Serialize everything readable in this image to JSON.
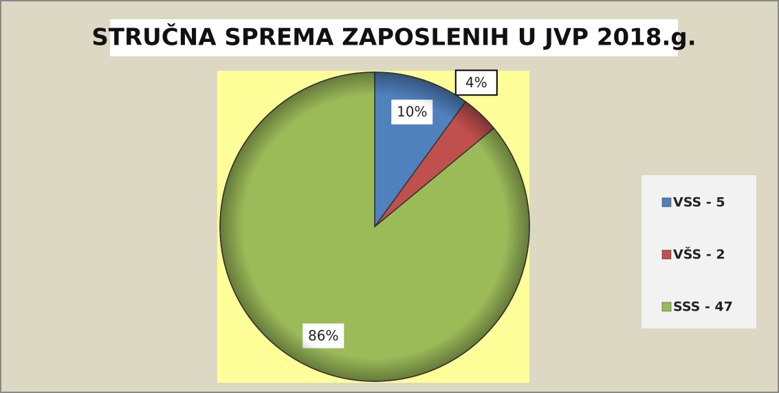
{
  "chart_data": {
    "type": "pie",
    "title": "STRUČNA SPREMA ZAPOSLENIH U JVP 2018.g.",
    "categories": [
      "VSS - 5",
      "VŠS - 2",
      "SSS - 47"
    ],
    "values": [
      10,
      4,
      86
    ],
    "value_labels": [
      "10%",
      "4%",
      "86%"
    ],
    "colors": [
      "#4f81bd",
      "#c0504d",
      "#9bbb59"
    ],
    "legend": "right"
  }
}
